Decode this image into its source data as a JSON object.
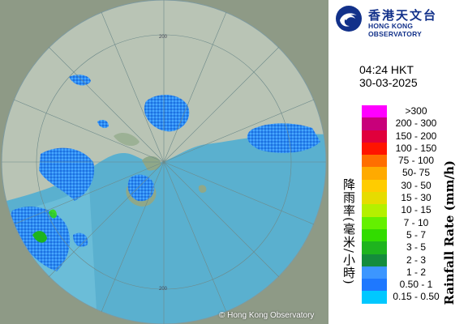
{
  "logo": {
    "name_cn": "香港天文台",
    "name_en": "HONG KONG OBSERVATORY",
    "logo_icon": "hko-swirl-logo-icon"
  },
  "timestamp": {
    "time": "04:24 HKT",
    "date": "30-03-2025"
  },
  "legend": {
    "title_cn": "降雨率(毫米/小時)",
    "title_en": "Rainfall Rate (mm/h)",
    "classes": [
      {
        "label": ">300",
        "color": "#ff00ff"
      },
      {
        "label": "200 - 300",
        "color": "#c8007a"
      },
      {
        "label": "150 - 200",
        "color": "#e0003c"
      },
      {
        "label": "100 - 150",
        "color": "#ff1400"
      },
      {
        "label": "75 - 100",
        "color": "#ff6e00"
      },
      {
        "label": "50- 75",
        "color": "#ffaa00"
      },
      {
        "label": "30 - 50",
        "color": "#ffcc00"
      },
      {
        "label": "15 - 30",
        "color": "#e6dc00"
      },
      {
        "label": "10 - 15",
        "color": "#b4f000"
      },
      {
        "label": "7 - 10",
        "color": "#64f000"
      },
      {
        "label": "5 - 7",
        "color": "#32dc00"
      },
      {
        "label": "3 - 5",
        "color": "#1eb41e"
      },
      {
        "label": "2 - 3",
        "color": "#148c3c"
      },
      {
        "label": "1 - 2",
        "color": "#3c96ff"
      },
      {
        "label": "0.50 - 1",
        "color": "#1e78ff"
      },
      {
        "label": "0.15 - 0.50",
        "color": "#00c8ff"
      }
    ]
  },
  "map": {
    "range_ring_label": "200",
    "copyright": "© Hong Kong Observatory"
  }
}
